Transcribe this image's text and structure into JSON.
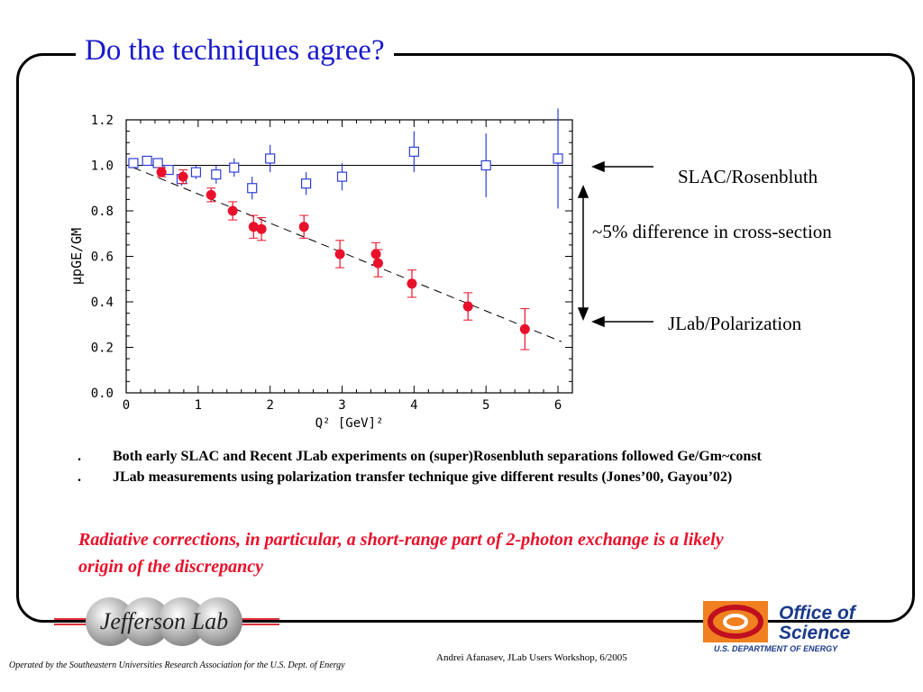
{
  "slide": {
    "title": "Do the techniques agree?",
    "annotations": {
      "slac": "SLAC/Rosenbluth",
      "difference": "~5% difference in cross-section",
      "jlab": "JLab/Polarization"
    },
    "bullets": [
      {
        "mark": ".",
        "text": "Both early SLAC and Recent JLab experiments on (super)Rosenbluth separations followed Ge/Gm~const"
      },
      {
        "mark": ".",
        "text": "JLab measurements using polarization transfer technique give different results (Jones’00, Gayou’02)"
      }
    ],
    "conclusion": "Radiative corrections, in particular, a short-range part of 2-photon exchange is a likely origin of the discrepancy",
    "footer_left": "Operated by the Southeastern Universities Research Association for the U.S. Dept. of Energy",
    "footer_right": "Andrei Afanasev, JLab Users Workshop, 6/2005",
    "logos": {
      "jlab": "Jefferson Lab",
      "science_line1": "Office of",
      "science_line2": "Science",
      "science_line3": "U.S. DEPARTMENT OF ENERGY"
    }
  },
  "colors": {
    "title": "#1a1acc",
    "rosenbluth": "#2e3fd6",
    "polarization": "#e8102a"
  },
  "chart_data": {
    "type": "scatter",
    "xlim": [
      0,
      6.2
    ],
    "ylim": [
      0,
      1.2
    ],
    "xticks": [
      0,
      1,
      2,
      3,
      4,
      5,
      6
    ],
    "yticks": [
      0.0,
      0.2,
      0.4,
      0.6,
      0.8,
      1.0,
      1.2
    ],
    "xlabel": "Q² [GeV]²",
    "ylabel": "μpGE/GM",
    "series": [
      {
        "marker": "open-square",
        "color": "#2e3fd6",
        "x": [
          0.1,
          0.29,
          0.44,
          0.59,
          0.77,
          0.97,
          1.25,
          1.5,
          1.75,
          2.0,
          2.5,
          3.0,
          4.0,
          5.0,
          6.0
        ],
        "y": [
          1.01,
          1.02,
          1.01,
          0.98,
          0.94,
          0.97,
          0.96,
          0.99,
          0.9,
          1.03,
          0.92,
          0.95,
          1.06,
          1.0,
          1.03
        ],
        "err": [
          0.01,
          0.015,
          0.02,
          0.02,
          0.03,
          0.03,
          0.04,
          0.04,
          0.05,
          0.06,
          0.05,
          0.06,
          0.09,
          0.14,
          0.22
        ]
      },
      {
        "marker": "filled-circle",
        "color": "#e8102a",
        "x": [
          0.49,
          0.79,
          1.18,
          1.48,
          1.77,
          1.88,
          2.47,
          2.97,
          3.47,
          3.5,
          3.97,
          4.75,
          5.54
        ],
        "y": [
          0.97,
          0.95,
          0.87,
          0.8,
          0.73,
          0.72,
          0.73,
          0.61,
          0.61,
          0.57,
          0.48,
          0.38,
          0.28
        ],
        "err": [
          0.02,
          0.03,
          0.03,
          0.04,
          0.05,
          0.05,
          0.05,
          0.06,
          0.05,
          0.06,
          0.06,
          0.06,
          0.09
        ]
      }
    ],
    "reference_lines": [
      {
        "style": "solid",
        "x": [
          0,
          6.2
        ],
        "y": [
          1.0,
          1.0
        ]
      },
      {
        "style": "dashed",
        "x": [
          0.1,
          6.05
        ],
        "y": [
          0.99,
          0.225
        ]
      }
    ],
    "grid": false
  }
}
